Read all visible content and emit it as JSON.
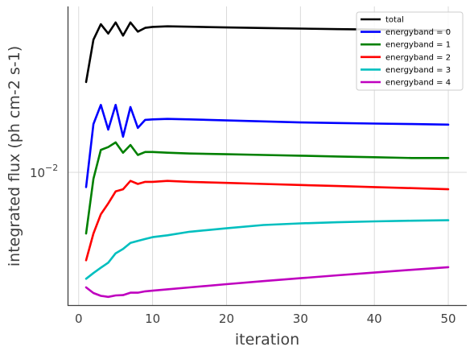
{
  "chart_data": {
    "type": "line",
    "title": "",
    "xlabel": "iteration",
    "ylabel": "integrated flux (ph cm-2 s-1)",
    "y_scale": "log",
    "xlim": [
      -1.5,
      52.5
    ],
    "ylim": [
      0.0023,
      0.062
    ],
    "x_ticks": [
      0,
      10,
      20,
      30,
      40,
      50
    ],
    "x_tick_labels": [
      "0",
      "10",
      "20",
      "30",
      "40",
      "50"
    ],
    "y_ticks": [
      0.01
    ],
    "y_tick_labels": [
      "10",
      "−2"
    ],
    "grid": true,
    "legend_position": "top-right",
    "x": [
      1,
      2,
      3,
      4,
      5,
      6,
      7,
      8,
      9,
      10,
      12,
      15,
      20,
      25,
      30,
      35,
      40,
      45,
      50
    ],
    "series": [
      {
        "name": "total",
        "color": "#000000",
        "values": [
          0.027,
          0.043,
          0.051,
          0.046,
          0.052,
          0.045,
          0.052,
          0.047,
          0.049,
          0.0495,
          0.0498,
          0.0496,
          0.0492,
          0.0489,
          0.0486,
          0.0483,
          0.0481,
          0.0478,
          0.0476
        ]
      },
      {
        "name": "energyband = 0",
        "color": "#0000ff",
        "values": [
          0.0085,
          0.017,
          0.021,
          0.016,
          0.021,
          0.0148,
          0.0205,
          0.0163,
          0.0178,
          0.0179,
          0.018,
          0.0179,
          0.0177,
          0.0175,
          0.0173,
          0.0172,
          0.0171,
          0.017,
          0.0169
        ]
      },
      {
        "name": "energyband = 1",
        "color": "#008000",
        "values": [
          0.0051,
          0.0093,
          0.0128,
          0.0132,
          0.0139,
          0.0124,
          0.0135,
          0.0121,
          0.0125,
          0.0125,
          0.0124,
          0.0123,
          0.0122,
          0.0121,
          0.012,
          0.0119,
          0.0118,
          0.0117,
          0.0117
        ]
      },
      {
        "name": "energyband = 2",
        "color": "#ff0000",
        "values": [
          0.0038,
          0.0051,
          0.0063,
          0.0071,
          0.0081,
          0.0083,
          0.0091,
          0.0088,
          0.009,
          0.009,
          0.0091,
          0.009,
          0.0089,
          0.0088,
          0.0087,
          0.0086,
          0.0085,
          0.0084,
          0.0083
        ]
      },
      {
        "name": "energyband = 3",
        "color": "#00bfbf",
        "values": [
          0.0031,
          0.0033,
          0.0035,
          0.0037,
          0.0041,
          0.0043,
          0.0046,
          0.0047,
          0.0048,
          0.0049,
          0.005,
          0.0052,
          0.0054,
          0.0056,
          0.0057,
          0.00577,
          0.00583,
          0.00587,
          0.0059
        ]
      },
      {
        "name": "energyband = 4",
        "color": "#bf00bf",
        "values": [
          0.00282,
          0.00265,
          0.00257,
          0.00254,
          0.00258,
          0.00259,
          0.00266,
          0.00266,
          0.0027,
          0.00272,
          0.00276,
          0.00282,
          0.00292,
          0.00302,
          0.00312,
          0.00322,
          0.00332,
          0.00342,
          0.00352
        ]
      }
    ]
  }
}
